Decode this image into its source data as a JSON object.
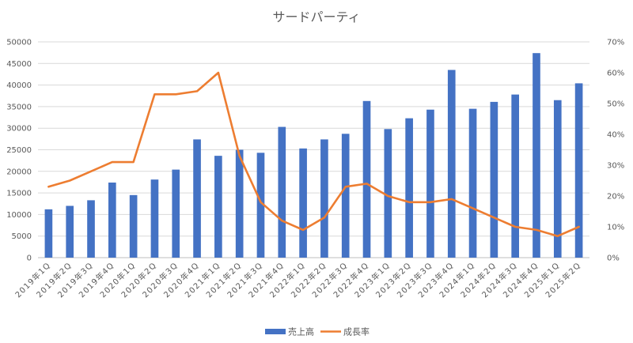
{
  "chart_data": {
    "type": "bar+line",
    "title": "サードパーティ",
    "categories": [
      "2019年1Q",
      "2019年2Q",
      "2019年3Q",
      "2019年4Q",
      "2020年1Q",
      "2020年2Q",
      "2020年3Q",
      "2020年4Q",
      "2021年1Q",
      "2021年2Q",
      "2021年3Q",
      "2021年4Q",
      "2022年1Q",
      "2022年2Q",
      "2022年3Q",
      "2022年4Q",
      "2023年1Q",
      "2023年2Q",
      "2023年3Q",
      "2023年4Q",
      "2024年1Q",
      "2024年2Q",
      "2024年3Q",
      "2024年4Q",
      "2025年1Q",
      "2025年2Q"
    ],
    "series": [
      {
        "name": "売上高",
        "type": "bar",
        "axis": "left",
        "color": "#4472C4",
        "values": [
          11200,
          12000,
          13300,
          17400,
          14500,
          18100,
          20400,
          27400,
          23600,
          25000,
          24300,
          30300,
          25300,
          27400,
          28700,
          36300,
          29800,
          32300,
          34300,
          43500,
          34500,
          36100,
          37800,
          47400,
          36500,
          40400
        ]
      },
      {
        "name": "成長率",
        "type": "line",
        "axis": "right",
        "color": "#ED7D31",
        "values": [
          0.23,
          0.25,
          0.28,
          0.31,
          0.31,
          0.53,
          0.53,
          0.54,
          0.6,
          0.33,
          0.18,
          0.12,
          0.09,
          0.13,
          0.23,
          0.24,
          0.2,
          0.18,
          0.18,
          0.19,
          0.16,
          0.13,
          0.1,
          0.09,
          0.07,
          0.1
        ]
      }
    ],
    "y_left": {
      "min": 0,
      "max": 50000,
      "ticks": [
        "0",
        "5000",
        "10000",
        "15000",
        "20000",
        "25000",
        "30000",
        "35000",
        "40000",
        "45000",
        "50000"
      ]
    },
    "y_right": {
      "min": 0,
      "max": 0.7,
      "ticks": [
        "0%",
        "10%",
        "20%",
        "30%",
        "40%",
        "50%",
        "60%",
        "70%"
      ]
    },
    "grid": true,
    "legend_position": "bottom"
  }
}
